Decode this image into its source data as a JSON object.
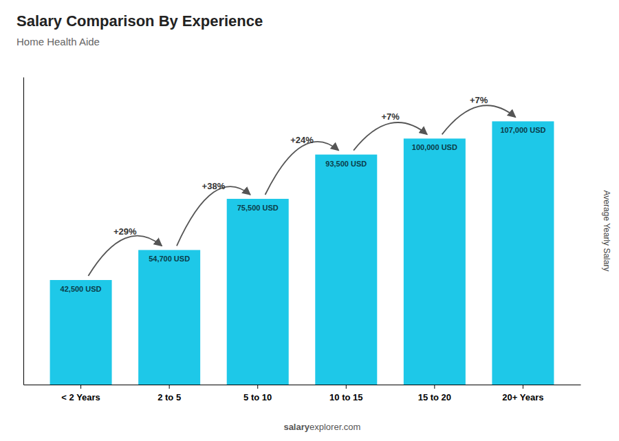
{
  "chart_data": {
    "type": "bar",
    "title": "Salary Comparison By Experience",
    "subtitle": "Home Health Aide",
    "categories": [
      "< 2 Years",
      "2 to 5",
      "5 to 10",
      "10 to 15",
      "15 to 20",
      "20+ Years"
    ],
    "values": [
      42500,
      54700,
      75500,
      93500,
      100000,
      107000
    ],
    "value_labels": [
      "42,500 USD",
      "54,700 USD",
      "75,500 USD",
      "93,500 USD",
      "100,000 USD",
      "107,000 USD"
    ],
    "data_labels": true,
    "color": "#1EC8E8",
    "ylabel": "Average Yearly Salary",
    "ylim": [
      0,
      125000
    ],
    "tick_labels": "x",
    "annotations": [
      "+29%",
      "+38%",
      "+24%",
      "+7%",
      "+7%"
    ],
    "watermark": [
      "salary",
      "explorer.com"
    ]
  }
}
